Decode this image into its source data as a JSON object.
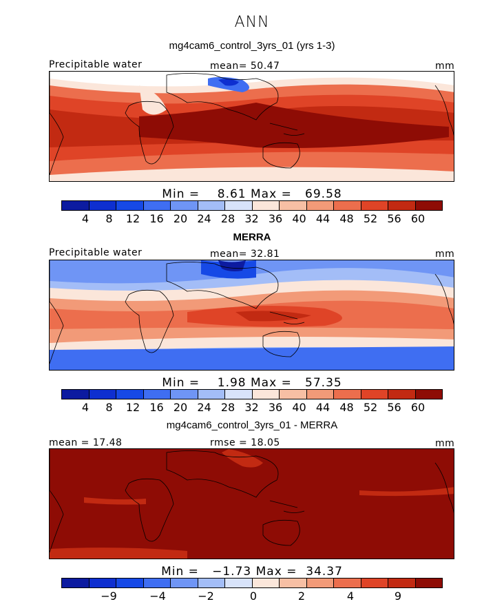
{
  "figure_title": "ANN",
  "colors": {
    "pw_scale": [
      "#0c1ba0",
      "#0e2fd0",
      "#1649e6",
      "#3f6ef2",
      "#6f95f5",
      "#a3bdf7",
      "#d8e3fa",
      "#fbe6da",
      "#f7bfa4",
      "#f29a78",
      "#ec6e4d",
      "#df4427",
      "#c22a12",
      "#8e0c05"
    ],
    "diff_scale": [
      "#0c1ba0",
      "#0e2fd0",
      "#1649e6",
      "#3f6ef2",
      "#6f95f5",
      "#a3bdf7",
      "#d8e3fa",
      "#fbe6da",
      "#f7bfa4",
      "#f29a78",
      "#ec6e4d",
      "#df4427",
      "#c22a12",
      "#8e0c05"
    ],
    "land_outline": "#000000"
  },
  "panels": [
    {
      "title": "mg4cam6_control_3yrs_01 (yrs 1-3)",
      "left_label": "Precipitable water",
      "center_label": "mean=  50.47",
      "right_label": "mm",
      "min_label": "Min =",
      "min_value": "8.61",
      "max_label": "Max =",
      "max_value": "69.58",
      "colorbar_ticks": [
        "4",
        "8",
        "12",
        "16",
        "20",
        "24",
        "28",
        "32",
        "36",
        "40",
        "44",
        "48",
        "52",
        "56",
        "60"
      ]
    },
    {
      "title": "MERRA",
      "left_label": "Precipitable water",
      "center_label": "mean=  32.81",
      "right_label": "mm",
      "min_label": "Min =",
      "min_value": "1.98",
      "max_label": "Max =",
      "max_value": "57.35",
      "colorbar_ticks": [
        "4",
        "8",
        "12",
        "16",
        "20",
        "24",
        "28",
        "32",
        "36",
        "40",
        "44",
        "48",
        "52",
        "56",
        "60"
      ]
    },
    {
      "title": "mg4cam6_control_3yrs_01 - MERRA",
      "left_label": "mean =  17.48",
      "center_label": "rmse =  18.05",
      "right_label": "mm",
      "min_label": "Min =",
      "min_value": "−1.73",
      "max_label": "Max =",
      "max_value": "34.37",
      "colorbar_ticks": [
        "−9",
        "−4",
        "−2",
        "0",
        "2",
        "4",
        "9"
      ]
    }
  ]
}
